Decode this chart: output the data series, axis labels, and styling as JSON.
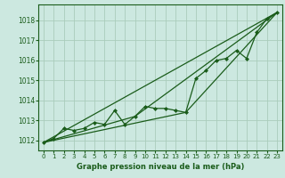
{
  "background_color": "#cce8e0",
  "grid_color": "#aaccbb",
  "line_color": "#1a5c1a",
  "marker_color": "#1a5c1a",
  "text_color": "#1a5c1a",
  "xlabel": "Graphe pression niveau de la mer (hPa)",
  "ylim": [
    1011.5,
    1018.8
  ],
  "xlim": [
    -0.5,
    23.5
  ],
  "yticks": [
    1012,
    1013,
    1014,
    1015,
    1016,
    1017,
    1018
  ],
  "xticks": [
    0,
    1,
    2,
    3,
    4,
    5,
    6,
    7,
    8,
    9,
    10,
    11,
    12,
    13,
    14,
    15,
    16,
    17,
    18,
    19,
    20,
    21,
    22,
    23
  ],
  "line1_x": [
    0,
    1,
    2,
    3,
    4,
    5,
    6,
    7,
    8,
    9,
    10,
    11,
    12,
    13,
    14,
    15,
    16,
    17,
    18,
    19,
    20,
    21,
    22,
    23
  ],
  "line1_y": [
    1011.9,
    1012.1,
    1012.6,
    1012.5,
    1012.6,
    1012.9,
    1012.8,
    1013.5,
    1012.8,
    1013.2,
    1013.7,
    1013.6,
    1013.6,
    1013.5,
    1013.4,
    1015.1,
    1015.5,
    1016.0,
    1016.1,
    1016.5,
    1016.1,
    1017.4,
    1018.1,
    1018.4
  ],
  "line2_x": [
    0,
    23
  ],
  "line2_y": [
    1011.9,
    1018.4
  ],
  "line3_x": [
    0,
    14,
    23
  ],
  "line3_y": [
    1011.9,
    1013.4,
    1018.4
  ],
  "line4_x": [
    0,
    9,
    23
  ],
  "line4_y": [
    1011.9,
    1013.2,
    1018.4
  ]
}
